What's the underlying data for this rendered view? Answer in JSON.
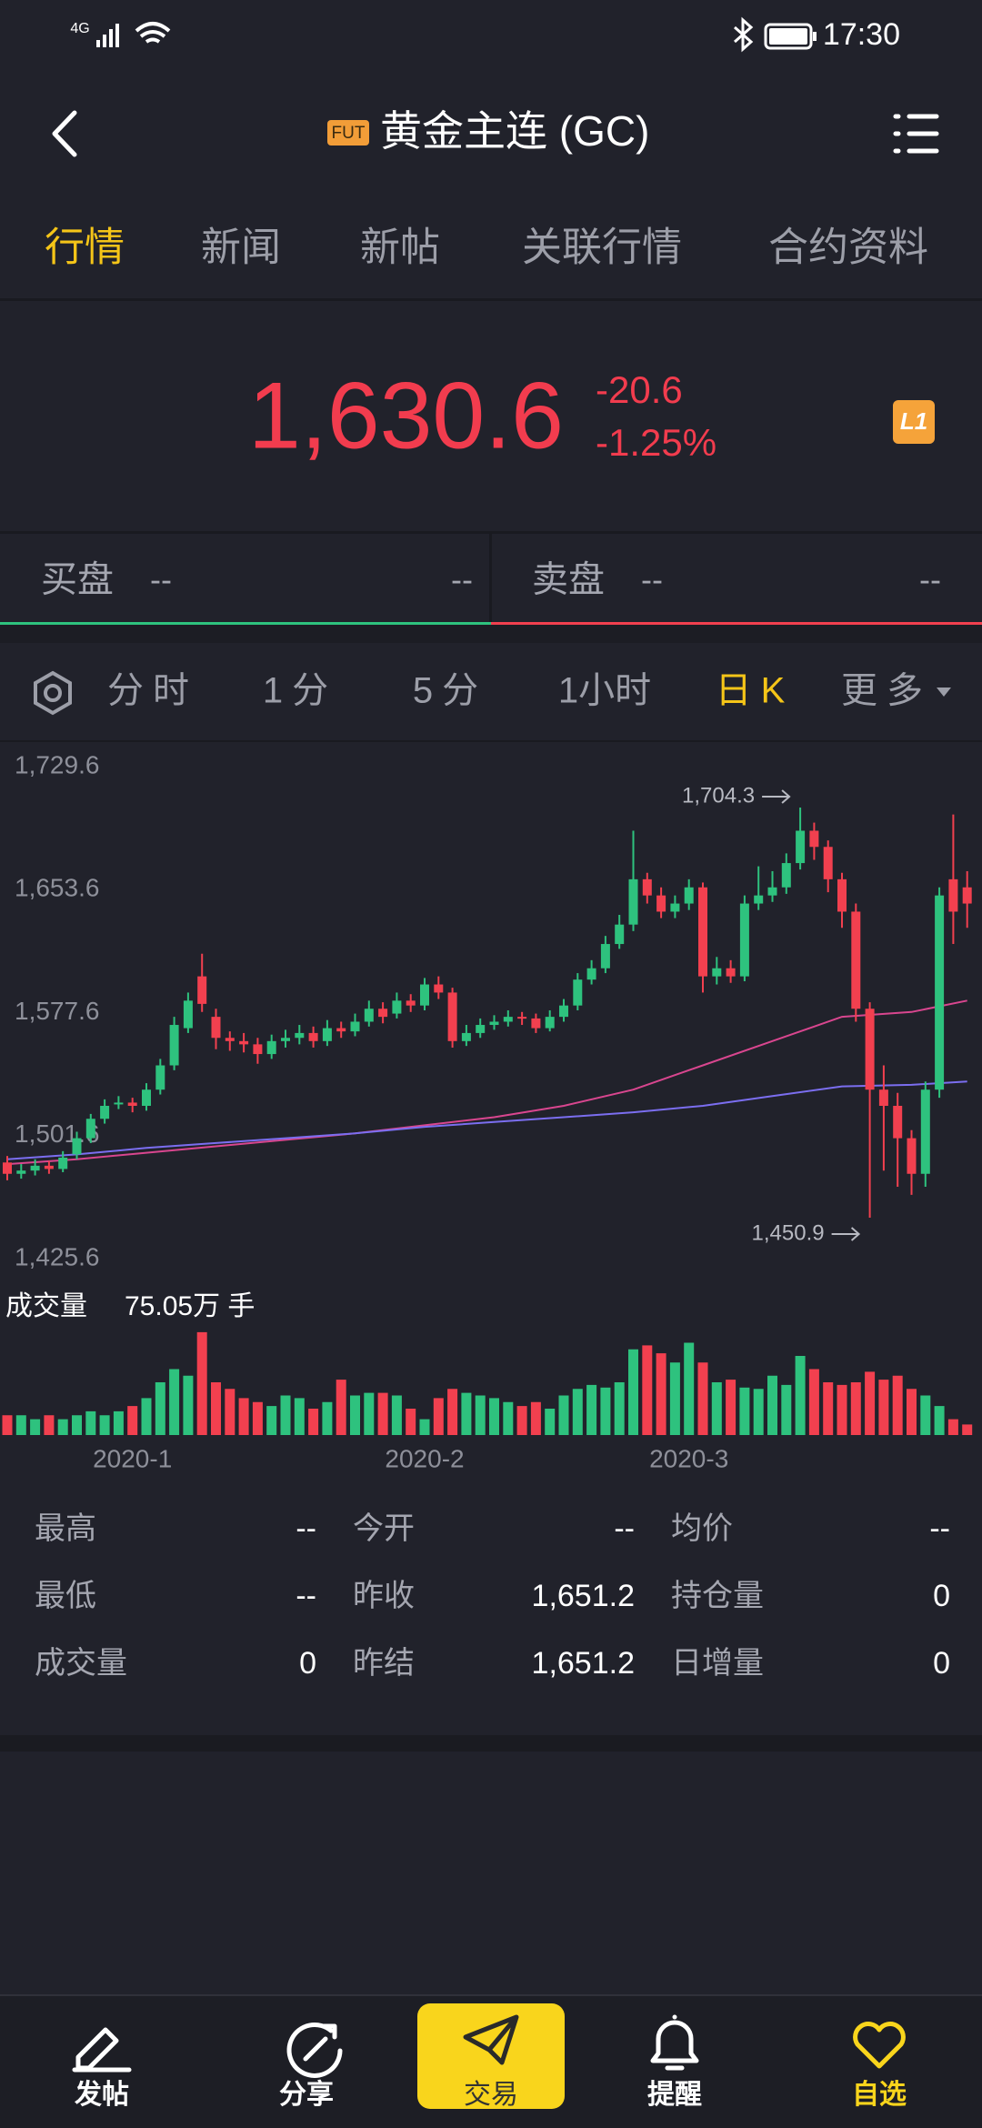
{
  "status_bar": {
    "network": "4G",
    "time": "17:30"
  },
  "header": {
    "badge": "FUT",
    "title": "黄金主连 (GC)"
  },
  "tabs": [
    "行情",
    "新闻",
    "新帖",
    "关联行情",
    "合约资料"
  ],
  "quote": {
    "price": "1,630.6",
    "change": "-20.6",
    "change_pct": "-1.25%",
    "level": "L1"
  },
  "order_book": {
    "bid_label": "买盘",
    "bid_price": "--",
    "bid_size": "--",
    "ask_label": "卖盘",
    "ask_price": "--",
    "ask_size": "--"
  },
  "chart_tabs": [
    "分时",
    "1分",
    "5分",
    "1小时",
    "日K",
    "更多"
  ],
  "chart_data": [
    {
      "type": "candlestick",
      "up_color": "#2ec27e",
      "down_color": "#f2404f",
      "ylim": [
        1425.6,
        1729.6
      ],
      "yticks": [
        {
          "value": 1729.6,
          "label": "1,729.6"
        },
        {
          "value": 1653.6,
          "label": "1,653.6"
        },
        {
          "value": 1577.6,
          "label": "1,577.6"
        },
        {
          "value": 1501.6,
          "label": "1,501.6"
        },
        {
          "value": 1425.6,
          "label": "1,425.6"
        }
      ],
      "open": [
        1485,
        1478,
        1480,
        1483,
        1481,
        1490,
        1500,
        1512,
        1522,
        1522,
        1520,
        1530,
        1545,
        1568,
        1600,
        1575,
        1562,
        1560,
        1558,
        1552,
        1560,
        1562,
        1565,
        1560,
        1568,
        1566,
        1572,
        1580,
        1577,
        1585,
        1582,
        1595,
        1590,
        1560,
        1565,
        1570,
        1572,
        1575,
        1574,
        1568,
        1575,
        1582,
        1598,
        1605,
        1620,
        1632,
        1660,
        1650,
        1640,
        1645,
        1655,
        1600,
        1605,
        1600,
        1645,
        1650,
        1655,
        1670,
        1690,
        1680,
        1660,
        1640,
        1580,
        1530,
        1520,
        1500,
        1478,
        1530,
        1660,
        1655
      ],
      "high": [
        1489,
        1484,
        1487,
        1486,
        1492,
        1504,
        1515,
        1524,
        1526,
        1525,
        1534,
        1549,
        1575,
        1590,
        1614,
        1580,
        1566,
        1565,
        1562,
        1564,
        1567,
        1570,
        1569,
        1573,
        1572,
        1577,
        1585,
        1584,
        1590,
        1589,
        1599,
        1600,
        1593,
        1570,
        1574,
        1576,
        1579,
        1578,
        1577,
        1579,
        1586,
        1602,
        1610,
        1625,
        1638,
        1690,
        1664,
        1655,
        1650,
        1660,
        1658,
        1612,
        1610,
        1650,
        1668,
        1665,
        1676,
        1704.3,
        1695,
        1684,
        1664,
        1645,
        1584,
        1545,
        1528,
        1505,
        1535,
        1655,
        1700,
        1665
      ],
      "low": [
        1474,
        1475,
        1477,
        1478,
        1479,
        1487,
        1497,
        1509,
        1518,
        1516,
        1517,
        1527,
        1542,
        1565,
        1578,
        1555,
        1554,
        1553,
        1546,
        1549,
        1556,
        1558,
        1556,
        1557,
        1562,
        1563,
        1569,
        1571,
        1574,
        1578,
        1579,
        1586,
        1556,
        1557,
        1562,
        1567,
        1569,
        1570,
        1565,
        1566,
        1572,
        1579,
        1595,
        1602,
        1617,
        1628,
        1645,
        1636,
        1636,
        1641,
        1590,
        1595,
        1596,
        1597,
        1641,
        1646,
        1651,
        1666,
        1672,
        1652,
        1630,
        1572,
        1450.9,
        1480,
        1470,
        1465,
        1470,
        1525,
        1620,
        1630
      ],
      "close": [
        1478,
        1480,
        1483,
        1481,
        1488,
        1500,
        1512,
        1520,
        1522,
        1520,
        1530,
        1545,
        1570,
        1585,
        1583,
        1562,
        1560,
        1558,
        1552,
        1560,
        1562,
        1565,
        1560,
        1568,
        1566,
        1572,
        1580,
        1575,
        1585,
        1582,
        1595,
        1590,
        1560,
        1565,
        1570,
        1572,
        1575,
        1574,
        1568,
        1575,
        1582,
        1598,
        1605,
        1620,
        1632,
        1660,
        1650,
        1640,
        1645,
        1655,
        1600,
        1605,
        1600,
        1645,
        1650,
        1655,
        1670,
        1690,
        1680,
        1660,
        1640,
        1580,
        1530,
        1520,
        1500,
        1478,
        1530,
        1650,
        1640,
        1645
      ],
      "series": [
        {
          "color": "#d9468f",
          "x": [
            0,
            5,
            10,
            15,
            20,
            25,
            30,
            35,
            40,
            45,
            50,
            55,
            60,
            65,
            69
          ],
          "values": [
            1484,
            1487,
            1491,
            1495,
            1499,
            1503,
            1508,
            1513,
            1520,
            1530,
            1545,
            1560,
            1575,
            1578,
            1585
          ]
        },
        {
          "color": "#7b6ef0",
          "x": [
            0,
            5,
            10,
            15,
            20,
            25,
            30,
            35,
            40,
            45,
            50,
            55,
            60,
            65,
            69
          ],
          "values": [
            1487,
            1490,
            1494,
            1497,
            1500,
            1503,
            1507,
            1510,
            1513,
            1516,
            1520,
            1526,
            1532,
            1533,
            1535
          ]
        }
      ],
      "annotations": [
        {
          "index": 57,
          "value": 1704.3,
          "label": "1,704.3"
        },
        {
          "index": 62,
          "value": 1450.9,
          "label": "1,450.9"
        }
      ]
    },
    {
      "type": "bar",
      "title": "成交量",
      "latest": "75.05万 手",
      "ylim": [
        0,
        80
      ],
      "values": [
        15,
        15,
        12,
        15,
        12,
        15,
        18,
        15,
        18,
        22,
        28,
        40,
        50,
        45,
        78,
        40,
        35,
        28,
        25,
        22,
        30,
        28,
        20,
        25,
        42,
        30,
        32,
        32,
        30,
        20,
        12,
        28,
        35,
        32,
        30,
        28,
        25,
        22,
        25,
        20,
        30,
        35,
        38,
        36,
        40,
        65,
        68,
        62,
        55,
        70,
        55,
        40,
        42,
        36,
        35,
        45,
        38,
        60,
        50,
        40,
        38,
        40,
        48,
        42,
        45,
        35,
        30,
        22,
        12,
        8
      ],
      "xticks": [
        {
          "value": 9,
          "label": "2020-1"
        },
        {
          "value": 30,
          "label": "2020-2"
        },
        {
          "value": 49,
          "label": "2020-3"
        }
      ]
    }
  ],
  "stats": [
    [
      "最高",
      "--",
      "今开",
      "--",
      "均价",
      "--"
    ],
    [
      "最低",
      "--",
      "昨收",
      "1,651.2",
      "持仓量",
      "0"
    ],
    [
      "成交量",
      "0",
      "昨结",
      "1,651.2",
      "日增量",
      "0"
    ]
  ],
  "nav": [
    "发帖",
    "分享",
    "交易",
    "提醒",
    "自选"
  ]
}
